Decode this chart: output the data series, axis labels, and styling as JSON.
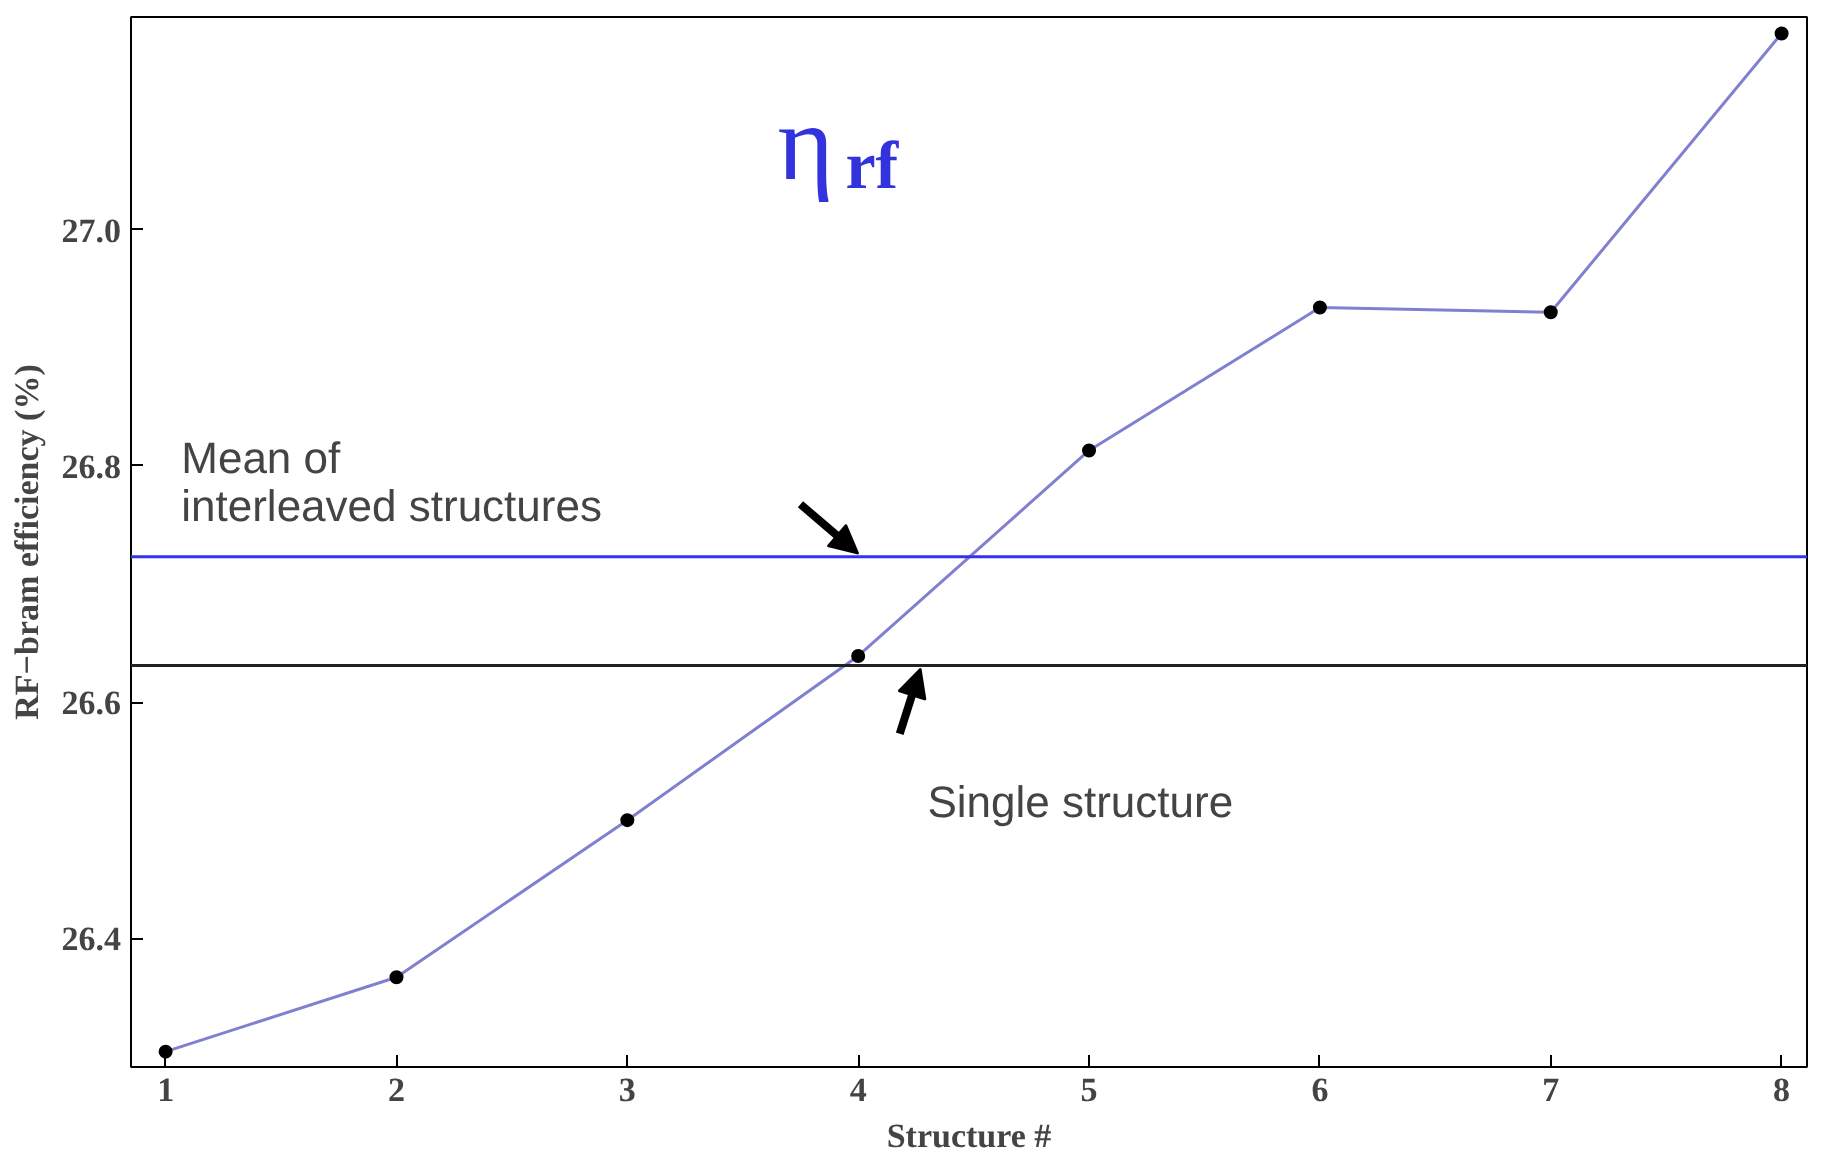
{
  "chart_data": {
    "type": "line",
    "xlabel": "Structure #",
    "ylabel": "RF−bram efficiency (%)",
    "x": [
      1,
      2,
      3,
      4,
      5,
      6,
      7,
      8
    ],
    "series": [
      {
        "color": "#8080d0",
        "values": [
          26.304,
          26.367,
          26.5,
          26.639,
          26.813,
          26.934,
          26.93,
          27.166
        ]
      }
    ],
    "marker": "circle",
    "line_style": "solid",
    "grid": false,
    "xlim": [
      0.85,
      8.11
    ],
    "ylim": [
      26.291,
      27.18
    ],
    "xticks": [
      1,
      2,
      3,
      4,
      5,
      6,
      7,
      8
    ],
    "yticks": [
      26.4,
      26.6,
      26.8,
      {
        "value": 27,
        "label": "27.0"
      }
    ],
    "ref_lines": [
      {
        "axis": "y",
        "value": 26.723,
        "label": "Mean of\ninterleaved structures",
        "color": "#3333ee"
      },
      {
        "axis": "y",
        "value": 26.631,
        "label": "Single structure",
        "color": "#222222"
      }
    ],
    "annotations": [
      "η$_{rf}$"
    ]
  }
}
